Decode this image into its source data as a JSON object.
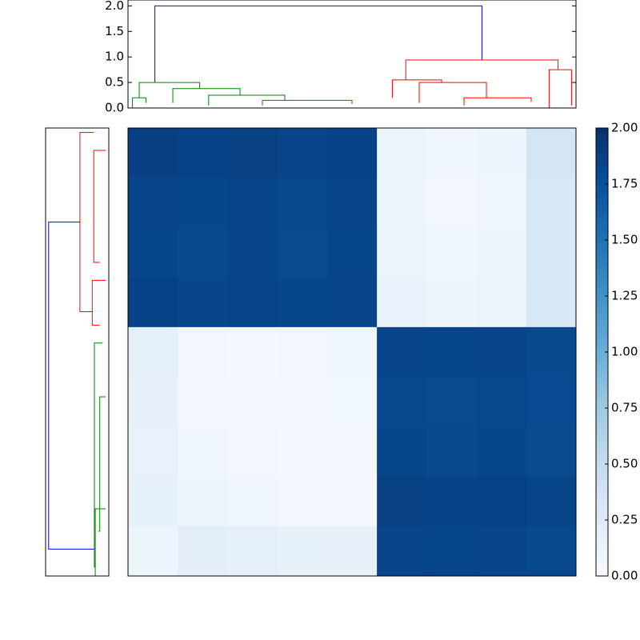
{
  "chart_data": [
    {
      "type": "dendrogram",
      "orientation": "top",
      "xlim": [
        0,
        100
      ],
      "ylim": [
        0,
        2.1
      ],
      "yticks": [
        {
          "value": 0,
          "label": "0.0"
        },
        {
          "value": 0.5,
          "label": "0.5"
        },
        {
          "value": 1,
          "label": "1.0"
        },
        {
          "value": 1.5,
          "label": "1.5"
        },
        {
          "value": 2,
          "label": "2.0"
        }
      ],
      "links": [
        {
          "color": "#0000ff",
          "positions": [
            6,
            6,
            79,
            79
          ],
          "heights": [
            0.5,
            2.0,
            2.0,
            0.94
          ]
        },
        {
          "color": "#008000",
          "positions": [
            1,
            1,
            4,
            4
          ],
          "heights": [
            0,
            0.2,
            0.2,
            0.1
          ]
        },
        {
          "color": "#008000",
          "positions": [
            2.5,
            2.5,
            16,
            16
          ],
          "heights": [
            0.2,
            0.5,
            0.5,
            0.38
          ]
        },
        {
          "color": "#008000",
          "positions": [
            10,
            10,
            25,
            25
          ],
          "heights": [
            0.1,
            0.38,
            0.38,
            0.25
          ]
        },
        {
          "color": "#008000",
          "positions": [
            18,
            18,
            35,
            35
          ],
          "heights": [
            0.05,
            0.25,
            0.25,
            0.15
          ]
        },
        {
          "color": "#008000",
          "positions": [
            30,
            30,
            50,
            50
          ],
          "heights": [
            0.05,
            0.15,
            0.15,
            0.08
          ]
        },
        {
          "color": "#ff0000",
          "positions": [
            62,
            62,
            96,
            96
          ],
          "heights": [
            0.55,
            0.94,
            0.94,
            0.75
          ]
        },
        {
          "color": "#ff0000",
          "positions": [
            59,
            59,
            70,
            70
          ],
          "heights": [
            0.2,
            0.55,
            0.55,
            0.5
          ]
        },
        {
          "color": "#ff0000",
          "positions": [
            65,
            65,
            80,
            80
          ],
          "heights": [
            0.1,
            0.5,
            0.5,
            0.2
          ]
        },
        {
          "color": "#ff0000",
          "positions": [
            75,
            75,
            90,
            90
          ],
          "heights": [
            0.05,
            0.2,
            0.2,
            0.12
          ]
        },
        {
          "color": "#ff0000",
          "positions": [
            94,
            94,
            99,
            99
          ],
          "heights": [
            0,
            0.75,
            0.75,
            0.05
          ]
        }
      ]
    },
    {
      "type": "dendrogram",
      "orientation": "left",
      "ylim": [
        0,
        100
      ],
      "xlim": [
        2.1,
        0
      ],
      "links": [
        {
          "color": "#0000ff",
          "positions": [
            21,
            21,
            94,
            94
          ],
          "heights": [
            0.96,
            2.0,
            2.0,
            0.48
          ]
        },
        {
          "color": "#ff0000",
          "positions": [
            1,
            1,
            41,
            41
          ],
          "heights": [
            0.5,
            0.96,
            0.96,
            0.55
          ]
        },
        {
          "color": "#ff0000",
          "positions": [
            5,
            5,
            30,
            30
          ],
          "heights": [
            0.1,
            0.5,
            0.5,
            0.3
          ]
        },
        {
          "color": "#ff0000",
          "positions": [
            34,
            34,
            44,
            44
          ],
          "heights": [
            0.1,
            0.55,
            0.55,
            0.3
          ]
        },
        {
          "color": "#008000",
          "positions": [
            48,
            48,
            98,
            98
          ],
          "heights": [
            0.2,
            0.48,
            0.48,
            0.45
          ]
        },
        {
          "color": "#008000",
          "positions": [
            60,
            60,
            90,
            90
          ],
          "heights": [
            0.1,
            0.3,
            0.3,
            0.35
          ]
        },
        {
          "color": "#008000",
          "positions": [
            85,
            85,
            100,
            100
          ],
          "heights": [
            0.1,
            0.45,
            0.45,
            0.2
          ]
        }
      ]
    },
    {
      "type": "heatmap",
      "matrix": [
        [
          1.88,
          1.86,
          1.87,
          1.85,
          1.86,
          0.12,
          0.08,
          0.1,
          0.35
        ],
        [
          1.84,
          1.83,
          1.85,
          1.82,
          1.84,
          0.1,
          0.06,
          0.08,
          0.3
        ],
        [
          1.83,
          1.82,
          1.84,
          1.81,
          1.83,
          0.12,
          0.08,
          0.1,
          0.3
        ],
        [
          1.86,
          1.84,
          1.85,
          1.83,
          1.85,
          0.14,
          0.1,
          0.12,
          0.3
        ],
        [
          0.18,
          0.06,
          0.05,
          0.06,
          0.08,
          1.84,
          1.83,
          1.84,
          1.82
        ],
        [
          0.15,
          0.05,
          0.04,
          0.05,
          0.07,
          1.82,
          1.81,
          1.82,
          1.8
        ],
        [
          0.14,
          0.08,
          0.06,
          0.05,
          0.06,
          1.83,
          1.82,
          1.83,
          1.81
        ],
        [
          0.16,
          0.12,
          0.08,
          0.06,
          0.05,
          1.87,
          1.86,
          1.86,
          1.85
        ],
        [
          0.1,
          0.2,
          0.18,
          0.16,
          0.15,
          1.84,
          1.83,
          1.84,
          1.82
        ]
      ],
      "colormap": "Blues",
      "clim": [
        0,
        2
      ],
      "cticks": [
        {
          "value": 0,
          "label": "0.00"
        },
        {
          "value": 0.25,
          "label": "0.25"
        },
        {
          "value": 0.5,
          "label": "0.50"
        },
        {
          "value": 0.75,
          "label": "0.75"
        },
        {
          "value": 1,
          "label": "1.00"
        },
        {
          "value": 1.25,
          "label": "1.25"
        },
        {
          "value": 1.5,
          "label": "1.50"
        },
        {
          "value": 1.75,
          "label": "1.75"
        },
        {
          "value": 2,
          "label": "2.00"
        }
      ]
    }
  ]
}
